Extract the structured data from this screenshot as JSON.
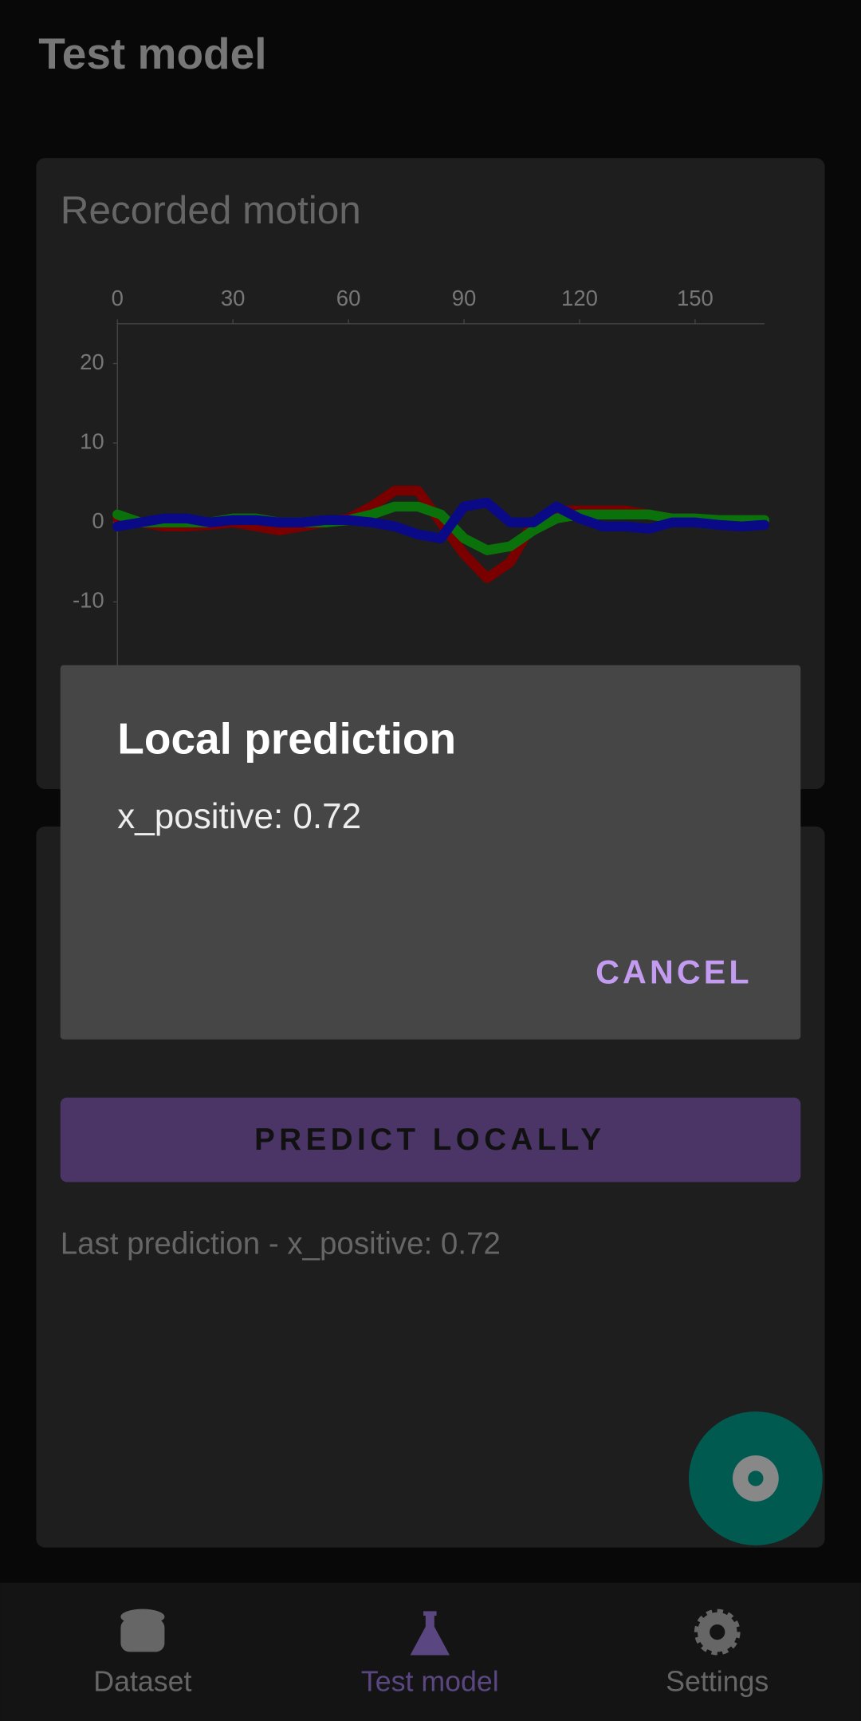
{
  "app_bar": {
    "title": "Test model"
  },
  "card": {
    "title": "Recorded motion"
  },
  "chart_data": {
    "type": "line",
    "x": [
      0,
      6,
      12,
      18,
      24,
      30,
      36,
      42,
      48,
      54,
      60,
      66,
      72,
      78,
      84,
      90,
      96,
      102,
      108,
      114,
      120,
      126,
      132,
      138,
      144,
      150,
      156,
      162,
      168
    ],
    "series": [
      {
        "color": "#7a0000",
        "values": [
          0.5,
          0,
          -0.5,
          -0.5,
          -0.3,
          0,
          -0.5,
          -1,
          -0.5,
          0,
          0.5,
          2,
          4,
          4,
          0,
          -4,
          -7,
          -5,
          0,
          1.5,
          1.5,
          1.5,
          1.5,
          1,
          0.5,
          0,
          0,
          0,
          0
        ]
      },
      {
        "color": "#0b720b",
        "values": [
          1,
          0,
          0,
          0,
          0,
          0.5,
          0.5,
          0,
          0,
          0,
          0.3,
          1,
          2,
          2,
          1,
          -2,
          -3.5,
          -3,
          -1,
          0.5,
          1,
          1,
          1,
          1,
          0.5,
          0.5,
          0.3,
          0.3,
          0.3
        ]
      },
      {
        "color": "#0a0a86",
        "values": [
          -0.5,
          0,
          0.5,
          0.5,
          0,
          0.3,
          0.3,
          0,
          0,
          0.3,
          0.3,
          0,
          -0.5,
          -1.5,
          -2,
          2,
          2.5,
          0,
          0,
          2,
          0.5,
          -0.5,
          -0.5,
          -0.8,
          0,
          0,
          -0.3,
          -0.5,
          -0.3
        ]
      }
    ],
    "xlim": [
      0,
      168
    ],
    "xticks": [
      0,
      30,
      60,
      90,
      120,
      150
    ],
    "ylim": [
      -25,
      25
    ],
    "yticks": [
      -10,
      0,
      10,
      20
    ]
  },
  "predict_button": "PREDICT LOCALLY",
  "last_prediction": "Last prediction - x_positive: 0.72",
  "dialog": {
    "title": "Local prediction",
    "message": "x_positive: 0.72",
    "button": "CANCEL"
  },
  "nav": [
    "Dataset",
    "Test model",
    "Settings"
  ]
}
